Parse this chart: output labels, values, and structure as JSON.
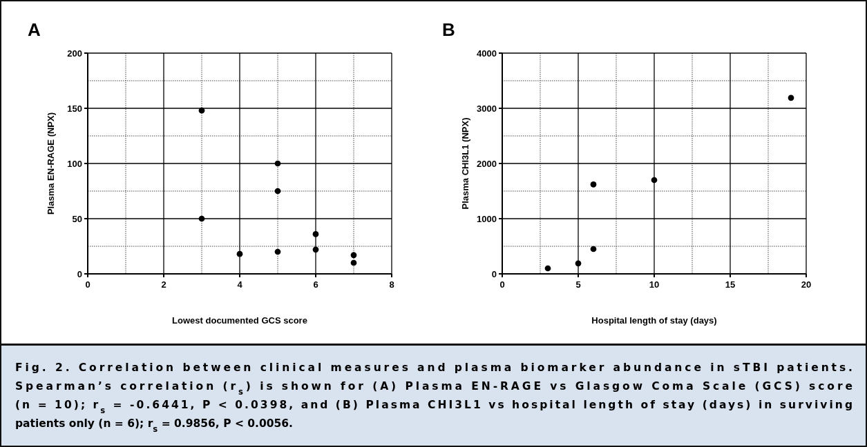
{
  "chart_data": [
    {
      "type": "scatter",
      "title": "A",
      "xlabel": "Lowest documented GCS score",
      "ylabel": "Plasma EN-RAGE (NPX)",
      "x": [
        3,
        3,
        4,
        5,
        5,
        5,
        6,
        6,
        7,
        7
      ],
      "values": [
        148,
        50,
        18,
        100,
        75,
        20,
        36,
        22,
        17,
        10
      ],
      "color": "#000000",
      "marker": "circle",
      "xlim": [
        0,
        8
      ],
      "xticks": [
        0,
        2,
        4,
        6,
        8
      ],
      "ylim": [
        0,
        200
      ],
      "yticks": [
        0,
        50,
        100,
        150,
        200
      ],
      "grid": true,
      "annotations": [
        "Fig. 2. Correlation between clinical measures and plasma biomarker abundance in sTBI patients.",
        "Spearman’s correlation (r$_{s}$) is shown for (A) Plasma EN-RAGE vs Glasgow Coma Scale (GCS) score",
        "(n = 10); r$_{s}$ = -0.6441, P < 0.0398, and (B) Plasma CHI3L1 vs hospital length of stay (days) in surviving",
        "patients only (n = 6); r$_{s}$ = 0.9856, P < 0.0056."
      ]
    },
    {
      "type": "scatter",
      "title": "B",
      "xlabel": "Hospital length of stay (days)",
      "ylabel": "Plasma CHI3L1 (NPX)",
      "x": [
        3,
        5,
        6,
        6,
        10,
        19
      ],
      "values": [
        100,
        190,
        1620,
        450,
        1700,
        3190
      ],
      "color": "#000000",
      "marker": "circle",
      "xlim": [
        0,
        20
      ],
      "xticks": [
        0,
        5,
        10,
        15,
        20
      ],
      "ylim": [
        0,
        4000
      ],
      "yticks": [
        0,
        1000,
        2000,
        3000,
        4000
      ],
      "grid": true
    }
  ]
}
